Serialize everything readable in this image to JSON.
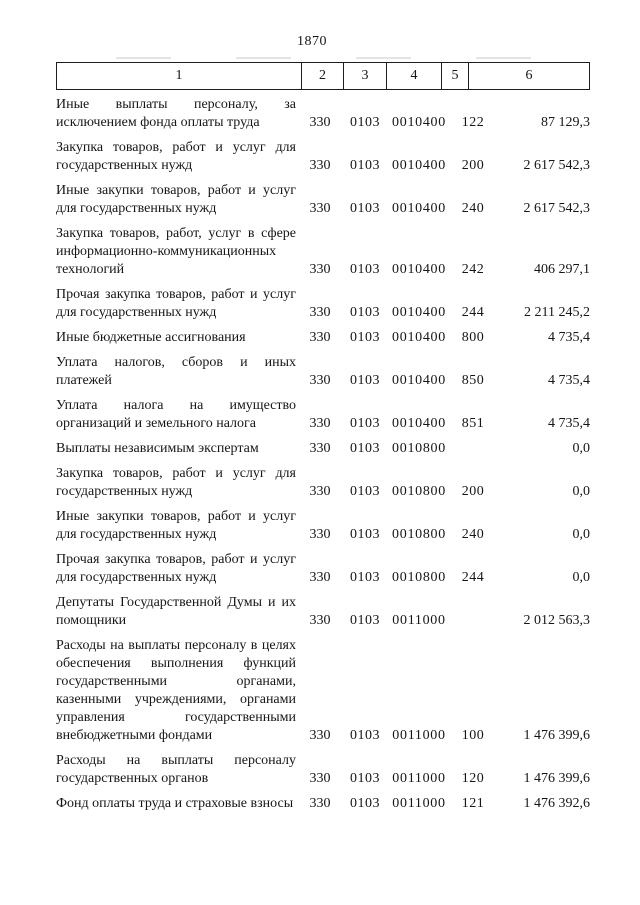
{
  "page": {
    "number": "1870"
  },
  "table": {
    "header": [
      "1",
      "2",
      "3",
      "4",
      "5",
      "6"
    ],
    "rows": [
      {
        "c1": "Иные выплаты персоналу, за исключением фонда оплаты труда",
        "c2": "330",
        "c3": "0103",
        "c4": "0010400",
        "c5": "122",
        "c6": "87 129,3"
      },
      {
        "c1": "Закупка товаров, работ и услуг для государственных нужд",
        "c2": "330",
        "c3": "0103",
        "c4": "0010400",
        "c5": "200",
        "c6": "2 617 542,3"
      },
      {
        "c1": "Иные закупки товаров, работ и услуг для государственных нужд",
        "c2": "330",
        "c3": "0103",
        "c4": "0010400",
        "c5": "240",
        "c6": "2 617 542,3"
      },
      {
        "c1": "Закупка товаров, работ, услуг в сфере информационно-коммуникационных технологий",
        "c2": "330",
        "c3": "0103",
        "c4": "0010400",
        "c5": "242",
        "c6": "406 297,1"
      },
      {
        "c1": "Прочая закупка товаров, работ и услуг для государственных нужд",
        "c2": "330",
        "c3": "0103",
        "c4": "0010400",
        "c5": "244",
        "c6": "2 211 245,2"
      },
      {
        "c1": "Иные бюджетные ассигнования",
        "c2": "330",
        "c3": "0103",
        "c4": "0010400",
        "c5": "800",
        "c6": "4 735,4"
      },
      {
        "c1": "Уплата налогов, сборов и иных платежей",
        "c2": "330",
        "c3": "0103",
        "c4": "0010400",
        "c5": "850",
        "c6": "4 735,4"
      },
      {
        "c1": "Уплата налога на имущество организаций и земельного налога",
        "c2": "330",
        "c3": "0103",
        "c4": "0010400",
        "c5": "851",
        "c6": "4 735,4"
      },
      {
        "c1": "Выплаты независимым экспертам",
        "c2": "330",
        "c3": "0103",
        "c4": "0010800",
        "c5": "",
        "c6": "0,0"
      },
      {
        "c1": "Закупка товаров, работ и услуг для государственных нужд",
        "c2": "330",
        "c3": "0103",
        "c4": "0010800",
        "c5": "200",
        "c6": "0,0"
      },
      {
        "c1": "Иные закупки товаров, работ и услуг для государственных нужд",
        "c2": "330",
        "c3": "0103",
        "c4": "0010800",
        "c5": "240",
        "c6": "0,0"
      },
      {
        "c1": "Прочая закупка товаров, работ и услуг для государственных нужд",
        "c2": "330",
        "c3": "0103",
        "c4": "0010800",
        "c5": "244",
        "c6": "0,0"
      },
      {
        "c1": "Депутаты Государственной Думы и их помощники",
        "c2": "330",
        "c3": "0103",
        "c4": "0011000",
        "c5": "",
        "c6": "2 012 563,3"
      },
      {
        "c1": "Расходы на выплаты персоналу в целях обеспечения выполнения функций государственными органами, казенными учреждениями, органами управления государственными внебюджетными фондами",
        "c2": "330",
        "c3": "0103",
        "c4": "0011000",
        "c5": "100",
        "c6": "1 476 399,6"
      },
      {
        "c1": "Расходы на выплаты персоналу государственных органов",
        "c2": "330",
        "c3": "0103",
        "c4": "0011000",
        "c5": "120",
        "c6": "1 476 399,6"
      },
      {
        "c1": "Фонд оплаты труда и страховые взносы",
        "c2": "330",
        "c3": "0103",
        "c4": "0011000",
        "c5": "121",
        "c6": "1 476 392,6"
      }
    ]
  }
}
